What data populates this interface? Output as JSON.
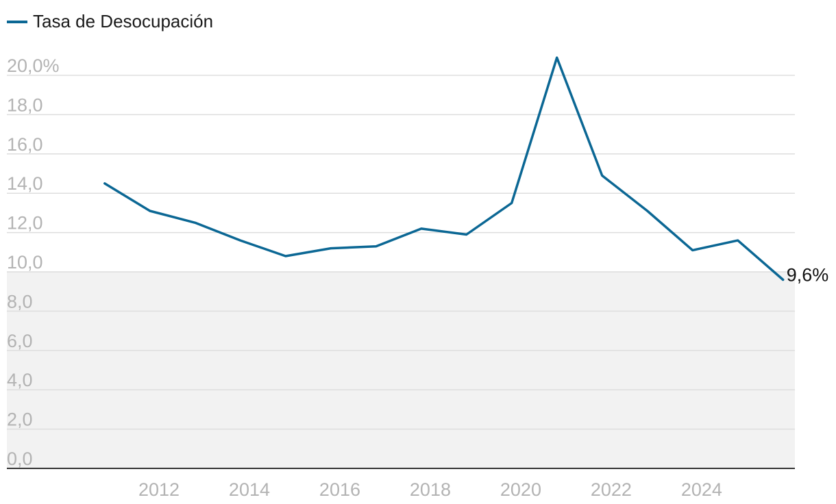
{
  "legend": {
    "label": "Tasa de Desocupación"
  },
  "chart_data": {
    "type": "line",
    "series": [
      {
        "name": "Tasa de Desocupación",
        "color": "#0b6794",
        "x": [
          2010.8,
          2011.8,
          2012.8,
          2013.8,
          2014.8,
          2015.8,
          2016.8,
          2017.8,
          2018.8,
          2019.8,
          2020.8,
          2021.8,
          2022.8,
          2023.8,
          2024.8,
          2025.8
        ],
        "values": [
          14.5,
          13.1,
          12.5,
          11.6,
          10.8,
          11.2,
          11.3,
          12.2,
          11.9,
          13.5,
          20.9,
          14.9,
          13.1,
          11.1,
          11.6,
          9.6
        ]
      }
    ],
    "end_label": "9,6%",
    "y_ticks": [
      "0,0",
      "2,0",
      "4,0",
      "6,0",
      "8,0",
      "10,0",
      "12,0",
      "14,0",
      "16,0",
      "18,0",
      "20,0%"
    ],
    "x_ticks": [
      "2012",
      "2014",
      "2016",
      "2018",
      "2020",
      "2022",
      "2024"
    ],
    "ylim": [
      0,
      20
    ],
    "xlim": [
      2010,
      2025.85
    ],
    "shaded_band": [
      0,
      10
    ],
    "grid": true,
    "legend_position": "top-left",
    "colors": {
      "line": "#0b6794",
      "band": "#f2f2f2",
      "grid": "#dddddd",
      "tick": "#b3b3b3",
      "axis": "#333333"
    }
  }
}
